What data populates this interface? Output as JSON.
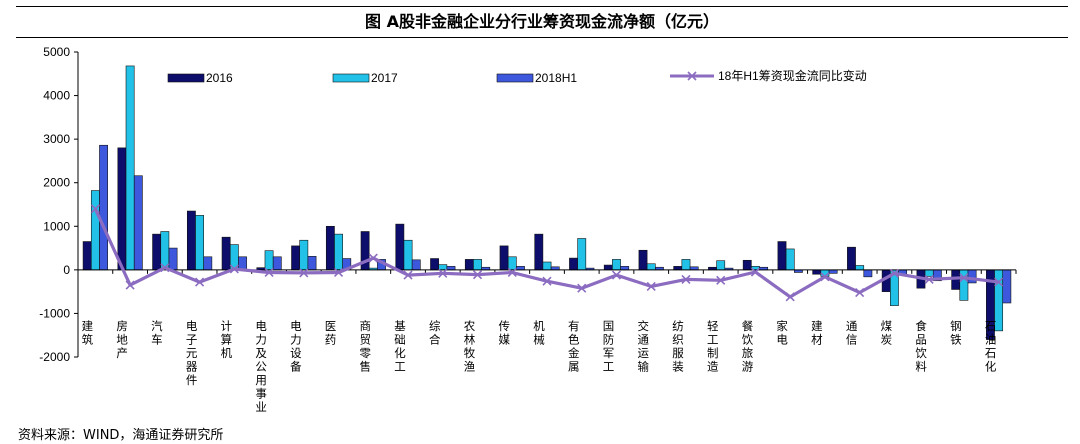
{
  "chart_data": {
    "type": "bar",
    "title": "图  A股非金融企业分行业筹资现金流净额（亿元）",
    "source": "资料来源：WIND，海通证券研究所",
    "ylim": [
      -2000,
      5000
    ],
    "yticks": [
      5000,
      4000,
      3000,
      2000,
      1000,
      0,
      -1000,
      -2000
    ],
    "legend_position": "top",
    "categories": [
      "建筑",
      "房地产",
      "汽车",
      "电子元器件",
      "计算机",
      "电力及公用事业",
      "电力设备",
      "医药",
      "商贸零售",
      "基础化工",
      "综合",
      "农林牧渔",
      "传媒",
      "机械",
      "有色金属",
      "国防军工",
      "交通运输",
      "纺织服装",
      "轻工制造",
      "餐饮旅游",
      "家电",
      "建材",
      "通信",
      "煤炭",
      "食品饮料",
      "钢铁",
      "石油石化"
    ],
    "series": [
      {
        "name": "2016",
        "color": "#0d0d6b",
        "values": [
          650,
          2800,
          820,
          1350,
          750,
          50,
          550,
          1000,
          880,
          1050,
          260,
          240,
          550,
          820,
          270,
          110,
          450,
          80,
          60,
          220,
          650,
          -100,
          520,
          -500,
          -420,
          -450,
          -1600
        ]
      },
      {
        "name": "2017",
        "color": "#22c2e8",
        "values": [
          1820,
          4680,
          880,
          1250,
          580,
          440,
          680,
          820,
          40,
          680,
          120,
          240,
          300,
          180,
          720,
          240,
          140,
          240,
          210,
          80,
          480,
          -150,
          100,
          -820,
          -150,
          -700,
          -1400
        ]
      },
      {
        "name": "2018H1",
        "color": "#3d58dc",
        "values": [
          2860,
          2160,
          500,
          300,
          300,
          300,
          310,
          260,
          240,
          230,
          80,
          60,
          80,
          70,
          40,
          80,
          60,
          70,
          40,
          60,
          -60,
          -80,
          -160,
          -100,
          -250,
          -300,
          -760
        ]
      },
      {
        "name": "18年H1筹资现金流同比变动",
        "color": "#8b6cc0",
        "type": "line",
        "values": [
          1400,
          -350,
          50,
          -280,
          20,
          -60,
          -70,
          -60,
          270,
          -120,
          -80,
          -110,
          -60,
          -260,
          -420,
          -120,
          -380,
          -220,
          -240,
          -50,
          -620,
          -160,
          -520,
          -80,
          -220,
          -180,
          -280
        ]
      }
    ]
  }
}
